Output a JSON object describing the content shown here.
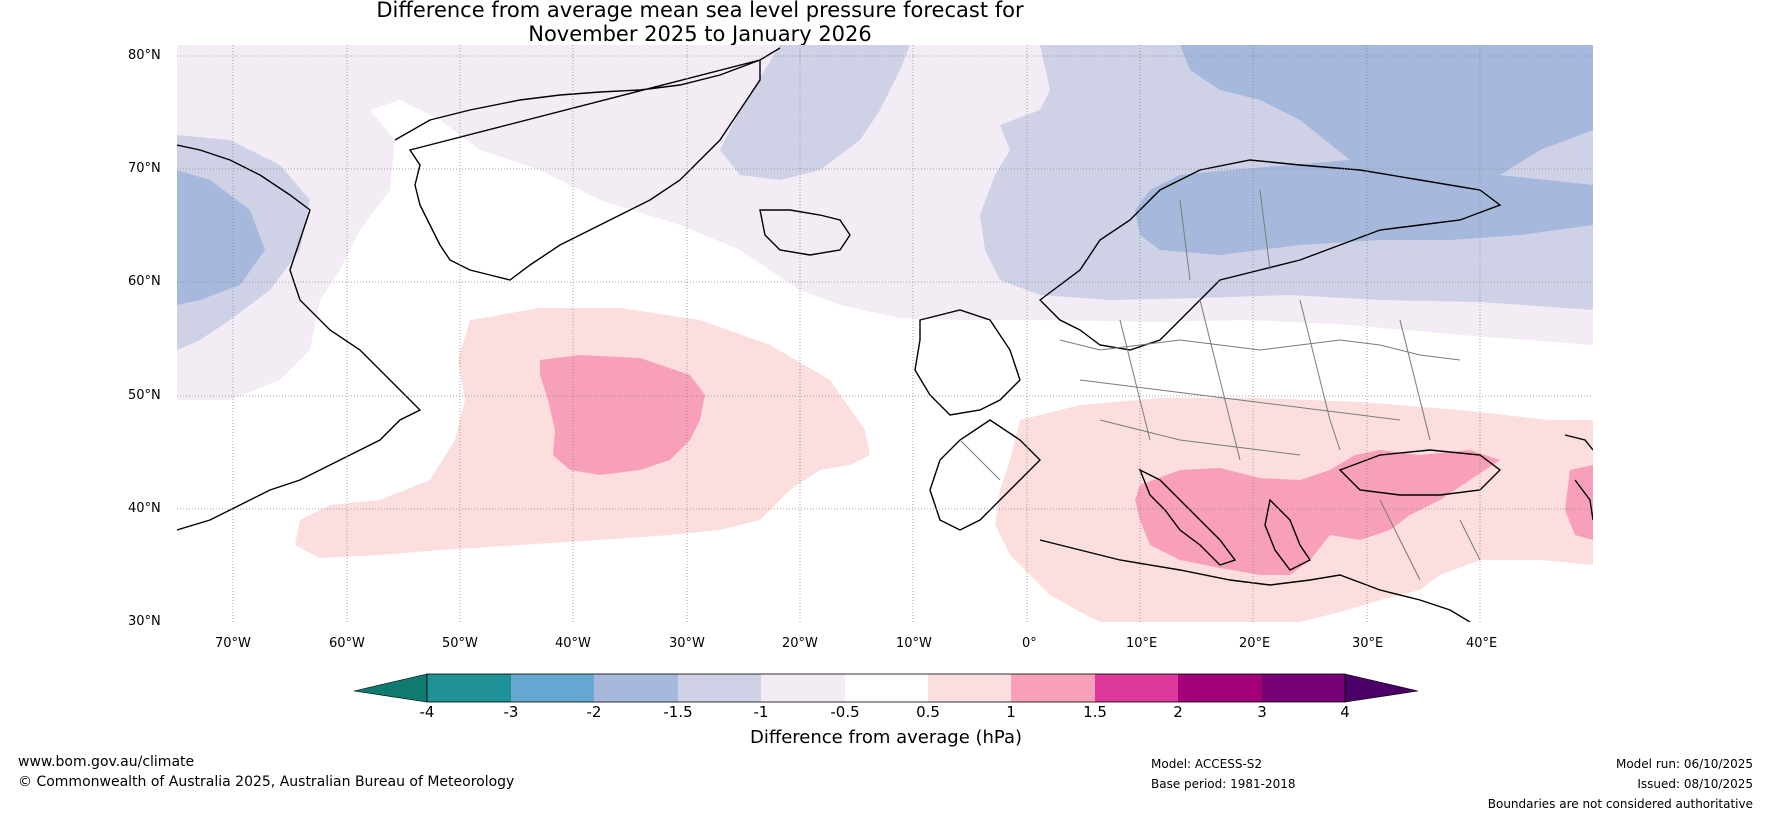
{
  "title": {
    "line1": "Difference from average mean sea level pressure forecast for",
    "line2": "November 2025 to January 2026"
  },
  "map": {
    "lat_labels": [
      "80°N",
      "70°N",
      "60°N",
      "50°N",
      "40°N",
      "30°N"
    ],
    "lon_labels": [
      "70°W",
      "60°W",
      "50°W",
      "40°W",
      "30°W",
      "20°W",
      "10°W",
      "0°",
      "10°E",
      "20°E",
      "30°E",
      "40°E"
    ],
    "lon_range": [
      -75,
      50
    ],
    "lat_range": [
      30,
      81
    ],
    "anomaly_regions": [
      {
        "name": "Greenland-Arctic negative",
        "class": "-1 to -0.5",
        "color": "#f3ecf5"
      },
      {
        "name": "Scandinavia negative",
        "class": "-1.5 to -1",
        "color": "#cfd1e6"
      },
      {
        "name": "Scandinavia core negative",
        "class": "-2 to -1.5",
        "color": "#a6b9dc"
      },
      {
        "name": "North Atlantic positive",
        "class": "0.5 to 1",
        "color": "#fcdedf"
      },
      {
        "name": "North Atlantic core positive",
        "class": "1 to 1.5",
        "color": "#f8a0b9"
      },
      {
        "name": "Mediterranean positive",
        "class": "0.5 to 1",
        "color": "#fcdedf"
      },
      {
        "name": "Mediterranean core positive",
        "class": "1 to 1.5",
        "color": "#f8a0b9"
      }
    ]
  },
  "colorbar": {
    "ticks": [
      "-4",
      "-3",
      "-2",
      "-1.5",
      "-1",
      "-0.5",
      "0.5",
      "1",
      "1.5",
      "2",
      "3",
      "4"
    ],
    "colors": [
      "#0f7a6f",
      "#1e9296",
      "#66a8d2",
      "#a6b9dc",
      "#cfd1e6",
      "#f3ecf5",
      "#ffffff",
      "#fcdedf",
      "#f8a0b9",
      "#dd389b",
      "#a4007a",
      "#780077",
      "#4a0066"
    ],
    "label": "Difference from average (hPa)"
  },
  "footer": {
    "website": "www.bom.gov.au/climate",
    "copyright": "© Commonwealth of Australia 2025, Australian Bureau of Meteorology",
    "model": "Model: ACCESS-S2",
    "base_period": "Base period: 1981-2018",
    "model_run": "Model run: 06/10/2025",
    "issued": "Issued: 08/10/2025",
    "disclaimer": "Boundaries are not considered authoritative"
  }
}
